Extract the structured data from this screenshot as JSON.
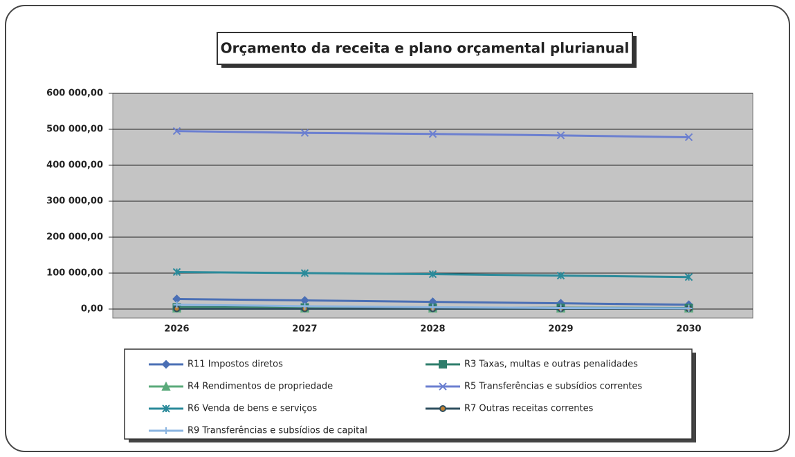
{
  "chart_data": {
    "type": "line",
    "title": "Orçamento da receita e plano orçamental plurianual",
    "categories": [
      "2026",
      "2027",
      "2028",
      "2029",
      "2030"
    ],
    "ylim": [
      0,
      600000
    ],
    "yticks": [
      {
        "value": 0,
        "label": "0,00"
      },
      {
        "value": 100000,
        "label": "100 000,00"
      },
      {
        "value": 200000,
        "label": "200 000,00"
      },
      {
        "value": 300000,
        "label": "300 000,00"
      },
      {
        "value": 400000,
        "label": "400 000,00"
      },
      {
        "value": 500000,
        "label": "500 000,00"
      },
      {
        "value": 600000,
        "label": "600 000,00"
      }
    ],
    "grid": true,
    "legend": "bottom",
    "series": [
      {
        "name": "R11 Impostos diretos",
        "color": "#4a6fb5",
        "marker": "diamond",
        "values": [
          28000,
          24000,
          20000,
          16000,
          12000
        ]
      },
      {
        "name": "R3 Taxas, multas e outras penalidades",
        "color": "#2e7d6b",
        "marker": "square",
        "values": [
          5000,
          4500,
          4000,
          3500,
          3000
        ]
      },
      {
        "name": "R4 Rendimentos de propriedade",
        "color": "#5aaa7a",
        "marker": "triangle",
        "values": [
          2000,
          2000,
          2000,
          2000,
          2000
        ]
      },
      {
        "name": "R5 Transferências e subsídios correntes",
        "color": "#6b7fd0",
        "marker": "x",
        "values": [
          495000,
          490000,
          487000,
          483000,
          478000
        ]
      },
      {
        "name": "R6 Venda de bens e serviços",
        "color": "#2a8a9a",
        "marker": "asterisk",
        "values": [
          103000,
          100000,
          97000,
          93000,
          89000
        ]
      },
      {
        "name": "R7 Outras receitas correntes",
        "color": "#2f4f5f",
        "marker": "circle",
        "values": [
          1000,
          1000,
          1000,
          1000,
          1000
        ]
      },
      {
        "name": "R9 Transferências e subsídios de capital",
        "color": "#8ab4e0",
        "marker": "plus",
        "values": [
          12000,
          8000,
          5000,
          3000,
          2000
        ]
      }
    ]
  }
}
